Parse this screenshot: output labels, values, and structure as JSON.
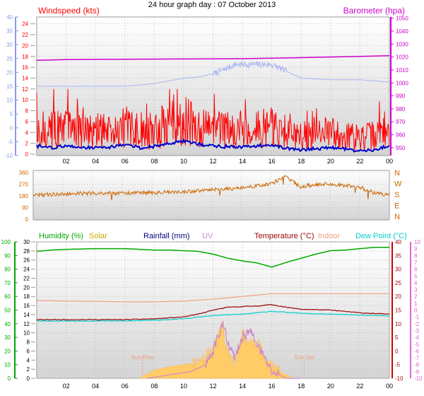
{
  "page_title": "24 hour graph day : 07 October 2013",
  "colors": {
    "wind_speed": "#ff0000",
    "wind_speed_axis": "#8f98e8",
    "barometer": "#cc00cc",
    "gust_line": "#a9b4f2",
    "avg_wind": "#0000cc",
    "direction": "#cc6600",
    "humidity": "#00aa00",
    "solar": "#ccaa00",
    "rainfall": "#000080",
    "uv": "#cc88cc",
    "temperature": "#990000",
    "indoor": "#f0a080",
    "dew_point": "#00cccc",
    "solar_fill": "#ffcc66"
  },
  "chart_data": [
    {
      "name": "wind-barometer",
      "type": "line",
      "x_tick_labels": [
        "02",
        "04",
        "06",
        "08",
        "10",
        "12",
        "14",
        "16",
        "18",
        "20",
        "22",
        "00"
      ],
      "labels": {
        "windspeed": "Windspeed (kts)",
        "barometer": "Barometer (hpa)"
      },
      "left_axis_outer": {
        "range": [
          -10,
          40
        ],
        "ticks": [
          "-10",
          "-5",
          "0",
          "5",
          "10",
          "15",
          "20",
          "25",
          "30",
          "35",
          "40"
        ]
      },
      "left_axis_inner": {
        "range": [
          0,
          25
        ],
        "ticks": [
          "0",
          "2",
          "4",
          "6",
          "8",
          "10",
          "12",
          "14",
          "16",
          "18",
          "20",
          "22",
          "24"
        ]
      },
      "right_axis": {
        "range": [
          945,
          1052
        ],
        "ticks": [
          "950",
          "960",
          "970",
          "980",
          "990",
          "1000",
          "1010",
          "1020",
          "1030",
          "1040",
          "1050"
        ]
      },
      "series": [
        {
          "name": "Barometer (hpa)",
          "axis": "right",
          "x": [
            0,
            2,
            6,
            10,
            14,
            18,
            22,
            24
          ],
          "y": [
            1017.5,
            1018,
            1018.3,
            1018.5,
            1018.7,
            1019.5,
            1020.5,
            1021
          ]
        },
        {
          "axis": "inner",
          "x": [
            0,
            1,
            3,
            6,
            8,
            9,
            10,
            11,
            12,
            12.7,
            13.5,
            16,
            18,
            20,
            22,
            24
          ],
          "y": [
            12.5,
            12.5,
            12.5,
            12.5,
            13,
            13.5,
            14,
            14.2,
            14.8,
            15.5,
            16.5,
            16.5,
            14,
            13.7,
            13.7,
            13.3
          ]
        },
        {
          "name": "Windspeed (kts)",
          "axis": "inner",
          "x": [
            0,
            1,
            2,
            3,
            4,
            5,
            6,
            7,
            8,
            9,
            10,
            11,
            12,
            13,
            14,
            15,
            16,
            17,
            18,
            19,
            20,
            21,
            22,
            23,
            24
          ],
          "y": [
            4,
            4.5,
            5,
            4.5,
            4,
            4.5,
            5,
            4,
            4.5,
            5.5,
            6,
            5,
            4.5,
            4.5,
            4,
            4.5,
            5,
            3.5,
            3,
            3.5,
            4,
            3.5,
            3,
            3.5,
            4
          ]
        },
        {
          "axis": "inner",
          "x": [
            0,
            1,
            2,
            3,
            4,
            5,
            6,
            7,
            8,
            9,
            10,
            11,
            12,
            13,
            14,
            15,
            16,
            17,
            18,
            19,
            20,
            21,
            22,
            23,
            24
          ],
          "y": [
            1.5,
            1.2,
            1.5,
            1.3,
            1.2,
            1.3,
            1.8,
            1.2,
            1.4,
            2,
            2.5,
            1.8,
            1.5,
            1.4,
            1.3,
            1.5,
            1.8,
            1,
            0.8,
            1,
            1.2,
            1,
            0.5,
            0.8,
            1.6
          ]
        }
      ]
    },
    {
      "name": "wind-direction",
      "type": "line",
      "left_axis": {
        "range": [
          0,
          360
        ],
        "ticks": [
          "0",
          "90",
          "180",
          "270",
          "360"
        ]
      },
      "right_labels": [
        "N",
        "W",
        "S",
        "E",
        "N"
      ],
      "series": [
        {
          "axis": "left",
          "x": [
            0,
            2,
            4,
            6,
            8,
            10,
            12,
            14,
            15,
            16,
            17,
            18,
            19,
            20,
            22,
            23,
            24
          ],
          "y": [
            185,
            195,
            200,
            200,
            205,
            210,
            225,
            240,
            255,
            270,
            330,
            250,
            270,
            270,
            250,
            200,
            185
          ]
        }
      ]
    },
    {
      "name": "temp-humidity",
      "type": "line",
      "x_tick_labels": [
        "02",
        "04",
        "06",
        "08",
        "10",
        "12",
        "14",
        "16",
        "18",
        "20",
        "22",
        "00"
      ],
      "legend": [
        {
          "label": "Humidity (%)",
          "color": "#00aa00"
        },
        {
          "label": "Solar",
          "color": "#ccaa00"
        },
        {
          "label": "Rainfall (mm)",
          "color": "#000080"
        },
        {
          "label": "UV",
          "color": "#cc88cc"
        },
        {
          "label": "Temperature (°C)",
          "color": "#990000"
        },
        {
          "label": "Indoor",
          "color": "#f0a080"
        },
        {
          "label": "Dew Point (°C)",
          "color": "#00cccc"
        }
      ],
      "annotations": [
        {
          "label": "Sun Rise",
          "x": 7.2
        },
        {
          "label": "Sun Set",
          "x": 18.2
        }
      ],
      "humidity_axis": {
        "range": [
          0,
          100
        ],
        "ticks": [
          "0",
          "10",
          "20",
          "30",
          "40",
          "50",
          "60",
          "70",
          "80",
          "90",
          "100"
        ]
      },
      "rainfall_axis": {
        "range": [
          0,
          30
        ],
        "ticks": [
          "0",
          "2",
          "4",
          "6",
          "8",
          "10",
          "12",
          "14",
          "16",
          "18",
          "20",
          "22",
          "24",
          "26",
          "28",
          "30"
        ]
      },
      "temperature_axis": {
        "range": [
          -10,
          40
        ],
        "ticks": [
          "-10",
          "-5",
          "0",
          "5",
          "10",
          "15",
          "20",
          "25",
          "30",
          "35",
          "40"
        ]
      },
      "uv_axis": {
        "range": [
          -10,
          10
        ],
        "ticks": [
          "-10",
          "-9",
          "-8",
          "-7",
          "-6",
          "-5",
          "-4",
          "-3",
          "-2",
          "-1",
          "0",
          "1",
          "2",
          "3",
          "4",
          "5",
          "6",
          "7",
          "8",
          "9",
          "10"
        ]
      },
      "series": [
        {
          "name": "Humidity (%)",
          "axis": "humidity",
          "x": [
            0,
            1,
            2,
            4,
            6,
            7,
            8,
            9,
            10,
            11,
            12,
            13,
            14,
            15,
            16,
            17,
            18,
            19,
            20,
            21,
            22,
            23,
            24
          ],
          "y": [
            93,
            94,
            94.5,
            95,
            95,
            94.5,
            94,
            94,
            93.5,
            93,
            91,
            88,
            86,
            84.5,
            81.5,
            85,
            88,
            91,
            93.5,
            94,
            95,
            96,
            96
          ]
        },
        {
          "name": "Indoor",
          "axis": "temperature",
          "x": [
            0,
            2,
            4,
            6,
            8,
            10,
            12,
            14,
            16,
            18,
            20,
            22,
            24
          ],
          "y": [
            18.5,
            18.3,
            18.2,
            18.0,
            18.0,
            18.3,
            19.0,
            20.0,
            21.0,
            21.0,
            21.0,
            21.0,
            21.0
          ]
        },
        {
          "name": "Temperature (°C)",
          "axis": "temperature",
          "x": [
            0,
            2,
            4,
            6,
            8,
            10,
            11,
            12,
            13,
            14,
            15,
            16,
            17,
            18,
            20,
            22,
            24
          ],
          "y": [
            11.5,
            11.5,
            11.5,
            11.5,
            11.8,
            12.5,
            13.5,
            15,
            16,
            16.3,
            16.5,
            17,
            16,
            15.3,
            15,
            14,
            13.5
          ]
        },
        {
          "name": "Dew Point (°C)",
          "axis": "temperature",
          "x": [
            0,
            2,
            4,
            6,
            8,
            10,
            12,
            14,
            16,
            18,
            20,
            22,
            24
          ],
          "y": [
            11,
            11,
            11,
            11,
            11.3,
            11.8,
            13,
            13.5,
            14.5,
            13.8,
            13.5,
            13.2,
            12.8
          ]
        },
        {
          "name": "UV",
          "axis": "uv",
          "x": [
            7.5,
            9,
            10.5,
            11.5,
            12,
            12.3,
            12.7,
            13,
            13.5,
            14,
            14.5,
            15,
            15.5,
            16,
            16.5,
            17,
            18
          ],
          "y": [
            -10,
            -9.5,
            -9,
            -8,
            -6,
            -4,
            -2,
            -5,
            -7,
            -4,
            -3,
            -5,
            -7,
            -9,
            -9.5,
            -10,
            -10
          ]
        }
      ],
      "solar": {
        "axis": "uv",
        "x": [
          7,
          8,
          9,
          10,
          11,
          12,
          12.3,
          12.6,
          13,
          13.5,
          14,
          14.5,
          15,
          15.5,
          16,
          16.5,
          17,
          17.5,
          18
        ],
        "y": [
          -10,
          -8.8,
          -8.3,
          -8,
          -7.5,
          -6,
          -3.5,
          -2,
          -6,
          -8,
          -3.5,
          -5,
          -4.5,
          -7,
          -8,
          -9,
          -9.5,
          -10,
          -10
        ]
      }
    }
  ]
}
